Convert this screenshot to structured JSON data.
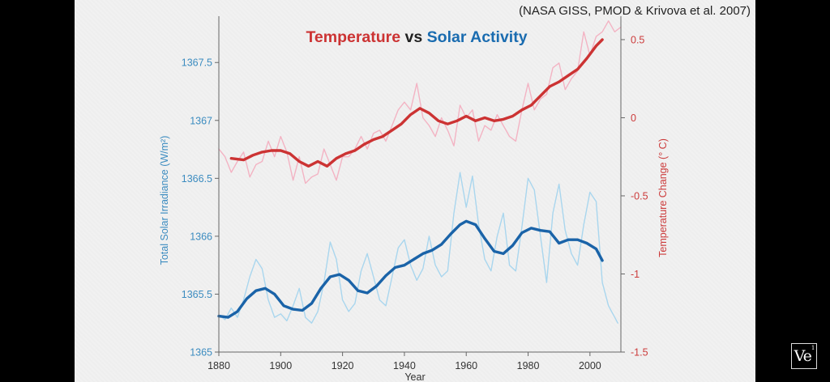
{
  "source_note": "(NASA GISS, PMOD & Krivova et al. 2007)",
  "watermark": {
    "text": "Ve",
    "sup": "1"
  },
  "colors": {
    "temp_smooth": "#cc3333",
    "temp_raw": "#f3b3c3",
    "solar_smooth": "#1a63a8",
    "solar_raw": "#a9d6ee",
    "left_axis": "#3c8cc0",
    "right_axis": "#cc3b3b",
    "axis_line": "#666666"
  },
  "chart_data": {
    "type": "line",
    "title": [
      {
        "text": "Temperature",
        "color": "#cc3333"
      },
      {
        "text": " vs ",
        "color": "#222222"
      },
      {
        "text": "Solar Activity",
        "color": "#1a6cb0"
      }
    ],
    "xlabel": "Year",
    "xlim": [
      1880,
      2010
    ],
    "xticks": [
      1880,
      1900,
      1920,
      1940,
      1960,
      1980,
      2000
    ],
    "left_axis": {
      "label": "Total Solar Irradiance (W/m²)",
      "ylim": [
        1365,
        1367.9
      ],
      "ticks": [
        {
          "value": 1365,
          "label": "1365"
        },
        {
          "value": 1365.5,
          "label": "1365.5"
        },
        {
          "value": 1366,
          "label": "1366"
        },
        {
          "value": 1366.5,
          "label": "1366.5"
        },
        {
          "value": 1367,
          "label": "1367"
        },
        {
          "value": 1367.5,
          "label": "1367.5"
        }
      ]
    },
    "right_axis": {
      "label": "Temperature Change (° C)",
      "ylim": [
        -1.5,
        0.65
      ],
      "ticks": [
        {
          "value": 0.5,
          "label": "0.5"
        },
        {
          "value": 0,
          "label": "0"
        },
        {
          "value": -0.5,
          "label": "-0.5"
        },
        {
          "value": -1,
          "label": "-1"
        },
        {
          "value": -1.5,
          "label": "-1.5"
        }
      ]
    },
    "series": [
      {
        "axis": "left",
        "style": "raw",
        "x": [
          1880,
          1882,
          1884,
          1886,
          1888,
          1890,
          1892,
          1894,
          1896,
          1898,
          1900,
          1902,
          1904,
          1906,
          1908,
          1910,
          1912,
          1914,
          1916,
          1918,
          1920,
          1922,
          1924,
          1926,
          1928,
          1930,
          1932,
          1934,
          1936,
          1938,
          1940,
          1942,
          1944,
          1946,
          1948,
          1950,
          1952,
          1954,
          1956,
          1958,
          1960,
          1962,
          1964,
          1966,
          1968,
          1970,
          1972,
          1974,
          1976,
          1978,
          1980,
          1982,
          1984,
          1986,
          1988,
          1990,
          1992,
          1994,
          1996,
          1998,
          2000,
          2002,
          2004,
          2006,
          2008,
          2009
        ],
        "y": [
          1365.32,
          1365.28,
          1365.38,
          1365.3,
          1365.45,
          1365.65,
          1365.8,
          1365.72,
          1365.45,
          1365.3,
          1365.33,
          1365.27,
          1365.4,
          1365.55,
          1365.3,
          1365.25,
          1365.35,
          1365.6,
          1365.95,
          1365.8,
          1365.45,
          1365.35,
          1365.42,
          1365.7,
          1365.85,
          1365.65,
          1365.45,
          1365.4,
          1365.65,
          1365.9,
          1365.97,
          1365.75,
          1365.62,
          1365.72,
          1366.0,
          1365.75,
          1365.65,
          1365.7,
          1366.2,
          1366.55,
          1366.25,
          1366.52,
          1366.1,
          1365.8,
          1365.7,
          1366.0,
          1366.2,
          1365.75,
          1365.7,
          1366.08,
          1366.5,
          1366.4,
          1366.0,
          1365.6,
          1366.2,
          1366.45,
          1366.05,
          1365.85,
          1365.75,
          1366.1,
          1366.38,
          1366.3,
          1365.6,
          1365.4,
          1365.3,
          1365.25
        ]
      },
      {
        "axis": "left",
        "style": "smooth",
        "x": [
          1880,
          1883,
          1886,
          1889,
          1892,
          1895,
          1898,
          1901,
          1904,
          1907,
          1910,
          1913,
          1916,
          1919,
          1922,
          1925,
          1928,
          1931,
          1934,
          1937,
          1940,
          1943,
          1946,
          1949,
          1952,
          1955,
          1958,
          1960,
          1963,
          1966,
          1969,
          1972,
          1975,
          1978,
          1981,
          1984,
          1987,
          1990,
          1993,
          1996,
          1999,
          2002,
          2004
        ],
        "y": [
          1365.31,
          1365.3,
          1365.35,
          1365.46,
          1365.53,
          1365.55,
          1365.5,
          1365.4,
          1365.37,
          1365.36,
          1365.42,
          1365.55,
          1365.65,
          1365.67,
          1365.62,
          1365.53,
          1365.51,
          1365.57,
          1365.66,
          1365.73,
          1365.75,
          1365.8,
          1365.85,
          1365.88,
          1365.93,
          1366.02,
          1366.1,
          1366.13,
          1366.1,
          1365.98,
          1365.87,
          1365.85,
          1365.92,
          1366.03,
          1366.07,
          1366.05,
          1366.04,
          1365.94,
          1365.97,
          1365.97,
          1365.94,
          1365.89,
          1365.79
        ]
      },
      {
        "axis": "right",
        "style": "raw",
        "x": [
          1880,
          1882,
          1884,
          1886,
          1888,
          1890,
          1892,
          1894,
          1896,
          1898,
          1900,
          1902,
          1904,
          1906,
          1908,
          1910,
          1912,
          1914,
          1916,
          1918,
          1920,
          1922,
          1924,
          1926,
          1928,
          1930,
          1932,
          1934,
          1936,
          1938,
          1940,
          1942,
          1944,
          1946,
          1948,
          1950,
          1952,
          1954,
          1956,
          1958,
          1960,
          1962,
          1964,
          1966,
          1968,
          1970,
          1972,
          1974,
          1976,
          1978,
          1980,
          1982,
          1984,
          1986,
          1988,
          1990,
          1992,
          1994,
          1996,
          1998,
          2000,
          2002,
          2004,
          2006,
          2008,
          2010
        ],
        "y": [
          -0.2,
          -0.25,
          -0.35,
          -0.28,
          -0.22,
          -0.38,
          -0.3,
          -0.28,
          -0.15,
          -0.25,
          -0.12,
          -0.22,
          -0.4,
          -0.25,
          -0.42,
          -0.38,
          -0.36,
          -0.2,
          -0.3,
          -0.4,
          -0.25,
          -0.25,
          -0.2,
          -0.12,
          -0.2,
          -0.1,
          -0.08,
          -0.15,
          -0.05,
          0.05,
          0.1,
          0.05,
          0.22,
          0.0,
          -0.05,
          -0.12,
          0.0,
          -0.08,
          -0.18,
          0.08,
          0.0,
          0.05,
          -0.15,
          -0.05,
          -0.08,
          0.02,
          -0.05,
          -0.12,
          -0.15,
          0.05,
          0.22,
          0.05,
          0.12,
          0.15,
          0.32,
          0.35,
          0.18,
          0.25,
          0.3,
          0.55,
          0.4,
          0.52,
          0.55,
          0.62,
          0.55,
          0.58
        ]
      },
      {
        "axis": "right",
        "style": "smooth",
        "x": [
          1884,
          1888,
          1891,
          1894,
          1897,
          1900,
          1903,
          1906,
          1909,
          1912,
          1915,
          1918,
          1921,
          1924,
          1927,
          1930,
          1933,
          1936,
          1939,
          1942,
          1945,
          1948,
          1951,
          1954,
          1957,
          1960,
          1963,
          1966,
          1969,
          1972,
          1975,
          1978,
          1981,
          1984,
          1987,
          1990,
          1993,
          1996,
          1999,
          2002,
          2004
        ],
        "y": [
          -0.26,
          -0.27,
          -0.24,
          -0.22,
          -0.21,
          -0.21,
          -0.23,
          -0.28,
          -0.31,
          -0.28,
          -0.31,
          -0.26,
          -0.23,
          -0.21,
          -0.17,
          -0.14,
          -0.12,
          -0.08,
          -0.04,
          0.02,
          0.06,
          0.03,
          -0.02,
          -0.04,
          -0.02,
          0.01,
          -0.02,
          0.0,
          -0.02,
          -0.01,
          0.01,
          0.05,
          0.08,
          0.14,
          0.2,
          0.23,
          0.27,
          0.31,
          0.38,
          0.46,
          0.5
        ]
      }
    ]
  }
}
